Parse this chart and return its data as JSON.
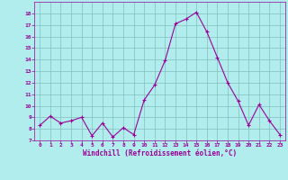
{
  "hours": [
    0,
    1,
    2,
    3,
    4,
    5,
    6,
    7,
    8,
    9,
    10,
    11,
    12,
    13,
    14,
    15,
    16,
    17,
    18,
    19,
    20,
    21,
    22,
    23
  ],
  "values": [
    8.3,
    9.1,
    8.5,
    8.7,
    9.0,
    7.4,
    8.5,
    7.3,
    8.1,
    7.5,
    10.5,
    11.8,
    13.9,
    17.1,
    17.5,
    18.1,
    16.4,
    14.2,
    12.0,
    10.4,
    8.3,
    10.1,
    8.7,
    7.5
  ],
  "ylim": [
    7,
    19
  ],
  "yticks": [
    7,
    8,
    9,
    10,
    11,
    12,
    13,
    14,
    15,
    16,
    17,
    18
  ],
  "xticks": [
    0,
    1,
    2,
    3,
    4,
    5,
    6,
    7,
    8,
    9,
    10,
    11,
    12,
    13,
    14,
    15,
    16,
    17,
    18,
    19,
    20,
    21,
    22,
    23
  ],
  "xlabel": "Windchill (Refroidissement éolien,°C)",
  "line_color": "#990099",
  "marker_color": "#990099",
  "bg_color": "#b2eded",
  "grid_color": "#80c0c0",
  "text_color": "#990099",
  "tick_color": "#990099",
  "axis_color": "#990099",
  "figsize": [
    3.2,
    2.0
  ],
  "dpi": 100
}
